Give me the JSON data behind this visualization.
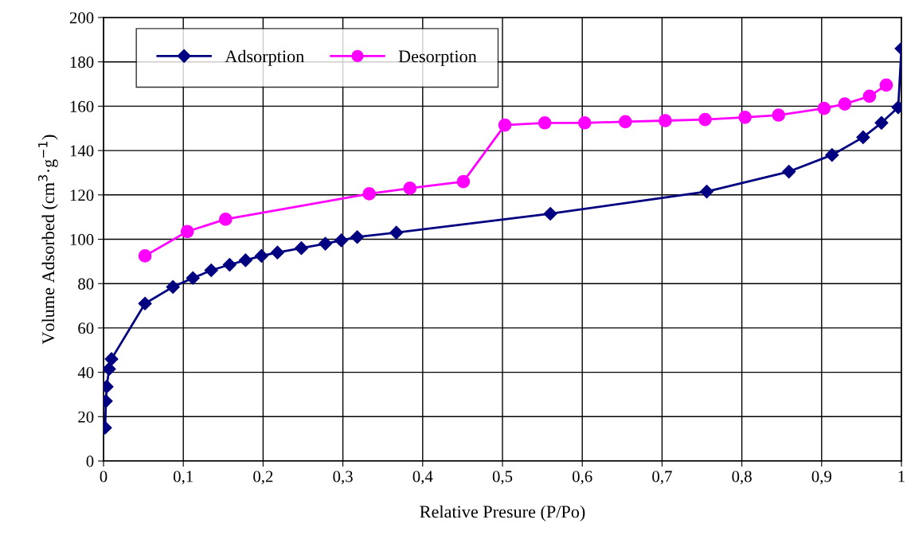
{
  "chart_data": {
    "type": "line",
    "xlabel": "Relative Presure (P/Po)",
    "ylabel": "Volume Adsorbed (cm$^{3}$·g$^{−1}$)",
    "xlim": [
      0,
      1
    ],
    "ylim": [
      0,
      200
    ],
    "xticks": [
      0,
      {
        "value": 0.1,
        "label": "0,1"
      },
      {
        "value": 0.2,
        "label": "0,2"
      },
      {
        "value": 0.3,
        "label": "0,3"
      },
      {
        "value": 0.4,
        "label": "0,4"
      },
      {
        "value": 0.5,
        "label": "0,5"
      },
      {
        "value": 0.6,
        "label": "0,6"
      },
      {
        "value": 0.7,
        "label": "0,7"
      },
      {
        "value": 0.8,
        "label": "0,8"
      },
      {
        "value": 0.9,
        "label": "0,9"
      },
      1
    ],
    "yticks": [
      0,
      20,
      40,
      60,
      80,
      100,
      120,
      140,
      160,
      180,
      200
    ],
    "grid": true,
    "legend": "top left",
    "line_style": "solid",
    "series": [
      {
        "name": "Adsorption",
        "color": "#000080",
        "marker": "diamond",
        "x": [
          0.002,
          0.003,
          0.004,
          0.007,
          0.01,
          0.052,
          0.087,
          0.112,
          0.135,
          0.158,
          0.178,
          0.198,
          0.218,
          0.248,
          0.278,
          0.298,
          0.318,
          0.367,
          0.56,
          0.756,
          0.859,
          0.913,
          0.952,
          0.975,
          0.996,
          1.0
        ],
        "values": [
          15,
          27,
          33.5,
          41.5,
          46,
          71,
          78.5,
          82.5,
          86,
          88.5,
          90.5,
          92.5,
          94,
          96,
          98,
          99.5,
          101,
          103,
          111.5,
          121.5,
          130.5,
          138,
          146,
          152.5,
          159.5,
          186
        ]
      },
      {
        "name": "Desorption",
        "color": "#ff00ff",
        "marker": "circle",
        "x": [
          0.052,
          0.105,
          0.153,
          0.333,
          0.384,
          0.451,
          0.503,
          0.553,
          0.603,
          0.654,
          0.704,
          0.754,
          0.804,
          0.846,
          0.903,
          0.929,
          0.96,
          0.981
        ],
        "values": [
          92.5,
          103.5,
          109,
          120.5,
          123,
          126,
          151.5,
          152.5,
          152.5,
          153,
          153.5,
          154,
          155,
          156,
          159,
          161,
          164.5,
          169.5
        ]
      }
    ]
  }
}
